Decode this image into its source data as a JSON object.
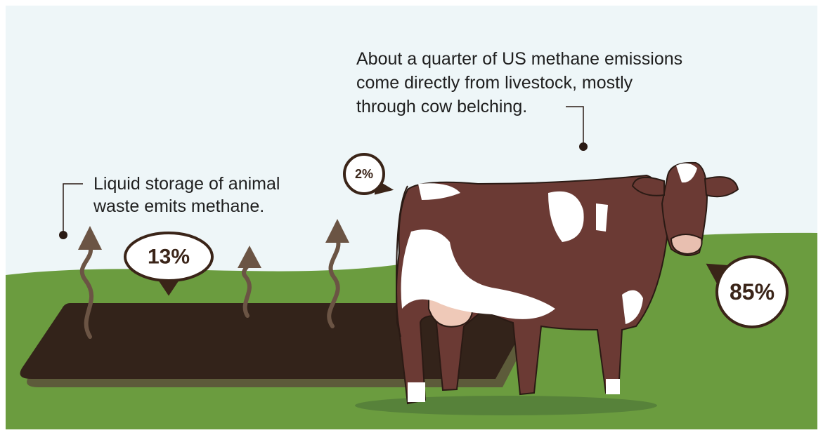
{
  "livestock_note": {
    "lines": [
      "About a quarter of US methane emissions",
      "come directly from livestock, mostly",
      "through cow belching."
    ]
  },
  "storage_note": {
    "lines": [
      "Liquid storage of animal",
      "waste emits methane."
    ]
  },
  "badges": {
    "storage": "13%",
    "other": "2%",
    "livestock": "85%"
  }
}
